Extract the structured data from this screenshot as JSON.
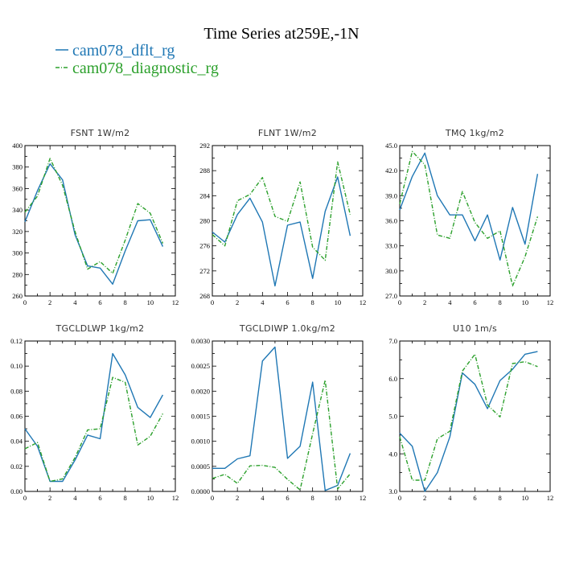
{
  "figure": {
    "title": "Time Series at259E,-1N",
    "legend": [
      {
        "name": "cam078_dflt_rg",
        "color": "#1f77b4"
      },
      {
        "name": "cam078_diagnostic_rg",
        "color": "#2ca02c"
      }
    ]
  },
  "chart_data": [
    {
      "type": "line",
      "title": "FSNT   1W/m2",
      "x": [
        0,
        1,
        2,
        3,
        4,
        5,
        6,
        7,
        8,
        9,
        10,
        11
      ],
      "xlim": [
        0,
        12
      ],
      "xticks": [
        "0",
        "2",
        "4",
        "6",
        "8",
        "10",
        "12"
      ],
      "ylim": [
        260,
        400
      ],
      "yticks": [
        "260",
        "280",
        "300",
        "320",
        "340",
        "360",
        "380",
        "400"
      ],
      "series": [
        {
          "name": "cam078_dflt_rg",
          "values": [
            329,
            358,
            383,
            368,
            317,
            288,
            286,
            271,
            302,
            330,
            331,
            306
          ]
        },
        {
          "name": "cam078_diagnostic_rg",
          "values": [
            338,
            353,
            388,
            363,
            320,
            285,
            292,
            281,
            312,
            346,
            337,
            309
          ]
        }
      ]
    },
    {
      "type": "line",
      "title": "FLNT   1W/m2",
      "x": [
        0,
        1,
        2,
        3,
        4,
        5,
        6,
        7,
        8,
        9,
        10,
        11
      ],
      "xlim": [
        0,
        12
      ],
      "xticks": [
        "0",
        "2",
        "4",
        "6",
        "8",
        "10",
        "12"
      ],
      "ylim": [
        268,
        292
      ],
      "yticks": [
        "268",
        "272",
        "276",
        "280",
        "284",
        "288",
        "292"
      ],
      "series": [
        {
          "name": "cam078_dflt_rg",
          "values": [
            278.2,
            276.6,
            281.0,
            283.6,
            279.8,
            269.6,
            279.3,
            279.8,
            270.8,
            281.5,
            287.0,
            277.6
          ]
        },
        {
          "name": "cam078_diagnostic_rg",
          "values": [
            277.8,
            276.0,
            283.2,
            284.2,
            286.9,
            280.7,
            279.9,
            286.2,
            275.8,
            273.7,
            289.4,
            281.0
          ]
        }
      ]
    },
    {
      "type": "line",
      "title": "TMQ   1kg/m2",
      "x": [
        0,
        1,
        2,
        3,
        4,
        5,
        6,
        7,
        8,
        9,
        10,
        11
      ],
      "xlim": [
        0,
        12
      ],
      "xticks": [
        "0",
        "2",
        "4",
        "6",
        "8",
        "10",
        "12"
      ],
      "ylim": [
        27.0,
        45.0
      ],
      "yticks": [
        "27.0",
        "30.0",
        "33.0",
        "36.0",
        "39.0",
        "42.0",
        "45.0"
      ],
      "series": [
        {
          "name": "cam078_dflt_rg",
          "values": [
            37.3,
            41.3,
            44.1,
            39.0,
            36.7,
            36.7,
            33.6,
            36.7,
            31.3,
            37.6,
            33.2,
            41.6
          ]
        },
        {
          "name": "cam078_diagnostic_rg",
          "values": [
            38.0,
            44.3,
            42.7,
            34.3,
            33.9,
            39.5,
            35.8,
            33.9,
            34.8,
            28.2,
            31.7,
            36.5
          ]
        }
      ]
    },
    {
      "type": "line",
      "title": "TGCLDLWP   1kg/m2",
      "x": [
        0,
        1,
        2,
        3,
        4,
        5,
        6,
        7,
        8,
        9,
        10,
        11
      ],
      "xlim": [
        0,
        12
      ],
      "xticks": [
        "0",
        "2",
        "4",
        "6",
        "8",
        "10",
        "12"
      ],
      "ylim": [
        0.0,
        0.12
      ],
      "yticks": [
        "0.00",
        "0.02",
        "0.04",
        "0.06",
        "0.08",
        "0.10",
        "0.12"
      ],
      "series": [
        {
          "name": "cam078_dflt_rg",
          "values": [
            0.05,
            0.036,
            0.008,
            0.008,
            0.025,
            0.045,
            0.042,
            0.11,
            0.093,
            0.067,
            0.059,
            0.077
          ]
        },
        {
          "name": "cam078_diagnostic_rg",
          "values": [
            0.034,
            0.039,
            0.008,
            0.01,
            0.027,
            0.049,
            0.05,
            0.091,
            0.087,
            0.037,
            0.044,
            0.062
          ]
        }
      ]
    },
    {
      "type": "line",
      "title": "TGCLDIWP   1.0kg/m2",
      "x": [
        0,
        1,
        2,
        3,
        4,
        5,
        6,
        7,
        8,
        9,
        10,
        11
      ],
      "xlim": [
        0,
        12
      ],
      "xticks": [
        "0",
        "2",
        "4",
        "6",
        "8",
        "10",
        "12"
      ],
      "ylim": [
        0.0,
        0.003
      ],
      "yticks": [
        "0.0000",
        "0.0005",
        "0.0010",
        "0.0015",
        "0.0020",
        "0.0025",
        "0.0030"
      ],
      "series": [
        {
          "name": "cam078_dflt_rg",
          "values": [
            0.00046,
            0.00046,
            0.00065,
            0.00071,
            0.0026,
            0.00288,
            0.00066,
            0.0009,
            0.00218,
            2e-05,
            0.00012,
            0.00076
          ]
        },
        {
          "name": "cam078_diagnostic_rg",
          "values": [
            0.00026,
            0.00034,
            0.00016,
            0.00051,
            0.00052,
            0.00048,
            0.00024,
            3e-05,
            0.00115,
            0.00222,
            5e-05,
            0.00035
          ]
        }
      ]
    },
    {
      "type": "line",
      "title": "U10   1m/s",
      "x": [
        0,
        1,
        2,
        3,
        4,
        5,
        6,
        7,
        8,
        9,
        10,
        11
      ],
      "xlim": [
        0,
        12
      ],
      "xticks": [
        "0",
        "2",
        "4",
        "6",
        "8",
        "10",
        "12"
      ],
      "ylim": [
        3.0,
        7.0
      ],
      "yticks": [
        "3.0",
        "4.0",
        "5.0",
        "6.0",
        "7.0"
      ],
      "series": [
        {
          "name": "cam078_dflt_rg",
          "values": [
            4.55,
            4.2,
            3.0,
            3.5,
            4.45,
            6.15,
            5.85,
            5.2,
            5.95,
            6.25,
            6.65,
            6.72
          ]
        },
        {
          "name": "cam078_diagnostic_rg",
          "values": [
            4.45,
            3.3,
            3.3,
            4.4,
            4.6,
            6.2,
            6.65,
            5.3,
            4.98,
            6.4,
            6.45,
            6.32
          ]
        }
      ]
    }
  ]
}
